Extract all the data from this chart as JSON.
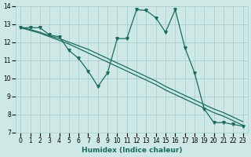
{
  "xlabel": "Humidex (Indice chaleur)",
  "xlim": [
    -0.5,
    23.5
  ],
  "ylim": [
    7,
    14
  ],
  "xticks": [
    0,
    1,
    2,
    3,
    4,
    5,
    6,
    7,
    8,
    9,
    10,
    11,
    12,
    13,
    14,
    15,
    16,
    17,
    18,
    19,
    20,
    21,
    22,
    23
  ],
  "yticks": [
    7,
    8,
    9,
    10,
    11,
    12,
    13,
    14
  ],
  "bg_color": "#cde8e5",
  "grid_color": "#aacfcc",
  "line_color": "#1a6b5e",
  "line_wavy_x": [
    0,
    1,
    2,
    3,
    4,
    5,
    6,
    7,
    8,
    9,
    10,
    11,
    12,
    13,
    14,
    15,
    16,
    17,
    18,
    19,
    20,
    21,
    22,
    23
  ],
  "line_wavy_y": [
    12.8,
    12.8,
    12.8,
    12.4,
    12.3,
    11.55,
    11.1,
    10.4,
    9.55,
    10.3,
    12.2,
    12.2,
    13.8,
    13.75,
    13.35,
    12.55,
    13.8,
    11.7,
    10.3,
    8.3,
    7.55,
    7.55,
    7.45,
    7.35
  ],
  "line_diag1_x": [
    0,
    1,
    2,
    3,
    4,
    5,
    6,
    7,
    8,
    9,
    10,
    11,
    12,
    13,
    14,
    15,
    16,
    17,
    18,
    19,
    20,
    21,
    22,
    23
  ],
  "line_diag1_y": [
    12.8,
    12.7,
    12.55,
    12.35,
    12.2,
    12.0,
    11.8,
    11.6,
    11.35,
    11.1,
    10.85,
    10.6,
    10.35,
    10.1,
    9.85,
    9.55,
    9.3,
    9.05,
    8.8,
    8.55,
    8.3,
    8.1,
    7.85,
    7.6
  ],
  "line_diag2_x": [
    0,
    1,
    2,
    3,
    4,
    5,
    6,
    7,
    8,
    9,
    10,
    11,
    12,
    13,
    14,
    15,
    16,
    17,
    18,
    19,
    20,
    21,
    22,
    23
  ],
  "line_diag2_y": [
    12.8,
    12.65,
    12.5,
    12.3,
    12.1,
    11.9,
    11.65,
    11.4,
    11.15,
    10.9,
    10.65,
    10.4,
    10.15,
    9.9,
    9.65,
    9.35,
    9.1,
    8.85,
    8.6,
    8.35,
    8.1,
    7.9,
    7.65,
    7.4
  ]
}
